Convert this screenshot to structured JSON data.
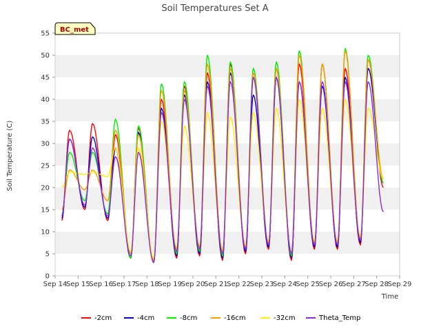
{
  "chart_data": {
    "type": "line",
    "title": "Soil Temperatures Set A",
    "xlabel": "Time",
    "ylabel": "Soil Temperature (C)",
    "badge": "BC_met",
    "ylim": [
      0,
      55
    ],
    "yticks": [
      0,
      5,
      10,
      15,
      20,
      25,
      30,
      35,
      40,
      45,
      50,
      55
    ],
    "xlim": [
      14,
      29
    ],
    "xticks": [
      14,
      15,
      16,
      17,
      18,
      19,
      20,
      21,
      22,
      23,
      24,
      25,
      26,
      27,
      28,
      29
    ],
    "xtick_labels": [
      "Sep 14",
      "Sep 15",
      "Sep 16",
      "Sep 17",
      "Sep 18",
      "Sep 19",
      "Sep 20",
      "Sep 21",
      "Sep 22",
      "Sep 23",
      "Sep 24",
      "Sep 25",
      "Sep 26",
      "Sep 27",
      "Sep 28",
      "Sep 29"
    ],
    "grid": "horizontal bands",
    "legend_placement": "bottom",
    "series": [
      {
        "name": "-2cm",
        "color": "#ff0000",
        "mins": [
          12.5,
          15,
          12.5,
          4,
          3,
          4,
          4.5,
          3.5,
          5,
          6,
          3.5,
          6,
          6,
          7,
          20
        ],
        "maxs": [
          33,
          34.5,
          32,
          33.5,
          40,
          43,
          46,
          48,
          45,
          47,
          48,
          48,
          47,
          49
        ]
      },
      {
        "name": "-4cm",
        "color": "#0000cc",
        "mins": [
          13,
          15.5,
          13,
          4,
          3,
          4.5,
          5,
          4,
          5.5,
          6.5,
          4,
          6.5,
          6.5,
          7.5,
          21
        ],
        "maxs": [
          31,
          31.5,
          29,
          32.5,
          38,
          41,
          44,
          46,
          41,
          45,
          44,
          43,
          45,
          47
        ]
      },
      {
        "name": "-8cm",
        "color": "#00ee00",
        "mins": [
          14,
          17,
          14,
          4,
          3,
          5,
          5.5,
          4.5,
          6,
          7,
          4.5,
          7,
          7,
          8,
          21
        ],
        "maxs": [
          28,
          28,
          35.5,
          34,
          43.5,
          44,
          50,
          48.5,
          47,
          48.5,
          51,
          48,
          51.5,
          50
        ]
      },
      {
        "name": "-16cm",
        "color": "#ff9900",
        "mins": [
          15,
          19.5,
          17,
          5,
          3.5,
          6,
          6.5,
          5.5,
          6.5,
          7.5,
          5,
          7.5,
          7.5,
          8.5,
          22
        ],
        "maxs": [
          24,
          24,
          33,
          32,
          42,
          42,
          48,
          47,
          46,
          47,
          50,
          48,
          51,
          49
        ]
      },
      {
        "name": "-32cm",
        "color": "#ffee00",
        "mins": [
          20,
          23,
          22.5,
          5.5,
          4,
          6.5,
          7,
          6,
          7,
          8,
          5.5,
          8,
          8,
          9,
          22
        ],
        "maxs": [
          23.5,
          23.5,
          29,
          29,
          35,
          34,
          37,
          36,
          37,
          38,
          40,
          38,
          40,
          38
        ]
      },
      {
        "name": "Theta_Temp",
        "color": "#8a2be2",
        "mins": [
          13.5,
          16,
          13.5,
          4.5,
          3,
          5.5,
          6,
          5,
          6,
          7,
          5,
          7,
          7,
          8,
          14.5
        ],
        "maxs": [
          31,
          29,
          27,
          28,
          37,
          40,
          43,
          44,
          45,
          45,
          44,
          44,
          44,
          44
        ]
      }
    ]
  }
}
